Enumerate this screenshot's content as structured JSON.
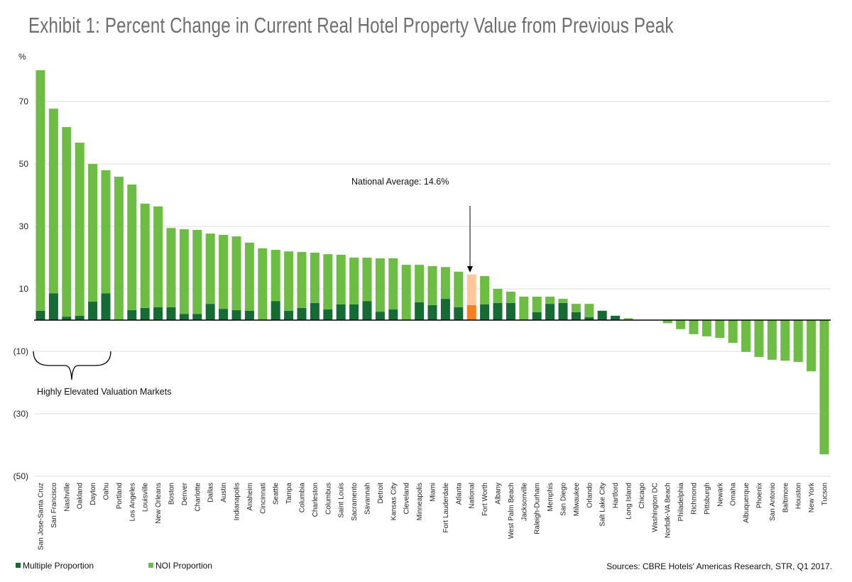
{
  "chart_data": {
    "type": "bar",
    "stacked": true,
    "title": "Exhibit 1: Percent Change in Current Real Hotel Property Value from Previous Peak",
    "ylabel": "%",
    "ylim": [
      -50,
      80
    ],
    "yticks": [
      70,
      50,
      30,
      10,
      -10,
      -30,
      -50
    ],
    "ytick_labels": [
      "70",
      "50",
      "30",
      "10",
      "(10)",
      "(30)",
      "(50)"
    ],
    "grid": true,
    "legend_position": "bottom-left",
    "categories": [
      "San Jose-Santa Cruz",
      "San Francisco",
      "Nashville",
      "Oakland",
      "Dayton",
      "Oahu",
      "Portland",
      "Los Angeles",
      "Louisville",
      "New Orleans",
      "Boston",
      "Denver",
      "Charlotte",
      "Dallas",
      "Austin",
      "Indianapolis",
      "Anaheim",
      "Cincinnati",
      "Seattle",
      "Tampa",
      "Columbia",
      "Charleston",
      "Columbus",
      "Saint Louis",
      "Sacramento",
      "Savannah",
      "Detroit",
      "Kansas City",
      "Cleveland",
      "Minneapolis",
      "Miami",
      "Fort Lauderdale",
      "Atlanta",
      "National",
      "Fort Worth",
      "Albany",
      "West Palm Beach",
      "Jacksonville",
      "Raleigh-Durham",
      "Memphis",
      "San Diego",
      "Milwaukee",
      "Orlando",
      "Salt Lake City",
      "Hartford",
      "Long Island",
      "Chicago",
      "Washington DC",
      "Norfolk-VA Beach",
      "Philadelphia",
      "Richmond",
      "Pittsburgh",
      "Newark",
      "Omaha",
      "Albuquerque",
      "Phoenix",
      "San Antonio",
      "Baltimore",
      "Houston",
      "New York",
      "Tucson"
    ],
    "series": [
      {
        "name": "Multiple Proportion",
        "color": "#166b35",
        "values": [
          3.0,
          8.6,
          1.1,
          1.4,
          5.9,
          8.6,
          0,
          3.2,
          3.9,
          4.1,
          4.1,
          2.0,
          2.0,
          5.2,
          3.6,
          3.2,
          3.0,
          0,
          6.1,
          3.0,
          3.9,
          5.5,
          3.4,
          5.0,
          5.0,
          6.1,
          2.7,
          3.4,
          0,
          5.7,
          4.8,
          6.8,
          4.1,
          4.8,
          5.0,
          5.5,
          5.5,
          0,
          2.5,
          5.2,
          5.5,
          2.5,
          0.9,
          3.0,
          1.4,
          0,
          0,
          0,
          0,
          0,
          0,
          0,
          0,
          0,
          0,
          0,
          0,
          0,
          0,
          0,
          0
        ]
      },
      {
        "name": "NOI Proportion",
        "color": "#6dbd45",
        "values": [
          77.0,
          59.1,
          60.7,
          55.4,
          44.1,
          39.4,
          45.9,
          40.2,
          33.4,
          32.3,
          25.4,
          27.1,
          26.9,
          22.5,
          23.7,
          23.6,
          21.8,
          23.0,
          16.4,
          19.0,
          17.9,
          16.1,
          17.7,
          15.9,
          15.0,
          13.9,
          17.1,
          16.4,
          17.7,
          12.0,
          12.5,
          10.2,
          11.4,
          9.8,
          9.1,
          4.5,
          3.6,
          7.5,
          5.0,
          2.3,
          1.3,
          2.7,
          4.3,
          0,
          0,
          0.6,
          0.1,
          0,
          -1.0,
          -2.9,
          -4.5,
          -5.2,
          -5.7,
          -7.3,
          -10.2,
          -11.8,
          -12.7,
          -13.0,
          -13.4,
          -16.4,
          -43.0
        ]
      }
    ],
    "highlight": {
      "category": "National",
      "multiple_color": "#f47f20",
      "noi_color": "#fbc89c"
    },
    "annotations": {
      "national_average": "National Average: 14.6%",
      "bracket_label": "Highly Elevated Valuation Markets"
    },
    "source": "Sources: CBRE Hotels' Americas Research, STR, Q1 2017."
  }
}
